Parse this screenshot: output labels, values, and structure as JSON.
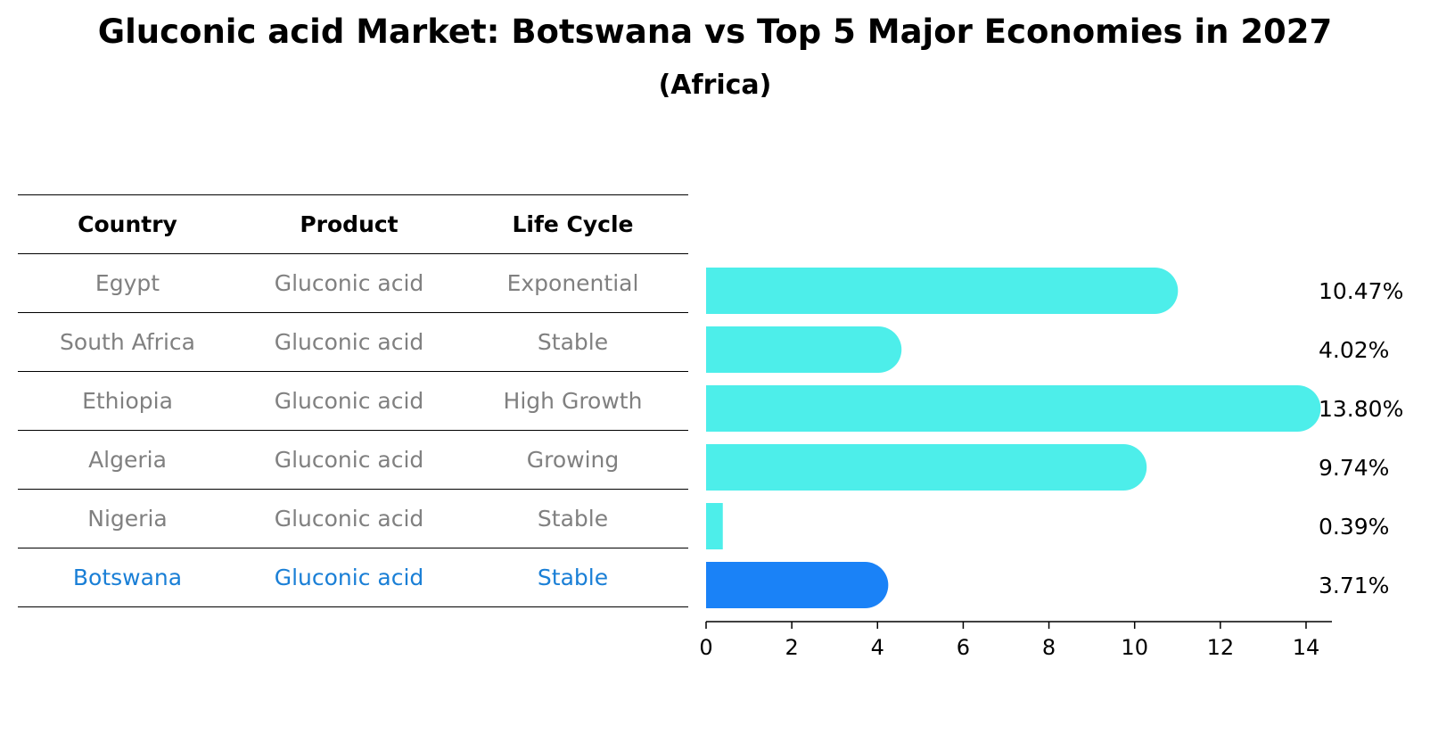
{
  "title": "Gluconic acid Market: Botswana vs Top 5 Major Economies in 2027",
  "subtitle": "(Africa)",
  "table": {
    "headers": [
      "Country",
      "Product",
      "Life Cycle"
    ],
    "rows": [
      {
        "country": "Egypt",
        "product": "Gluconic acid",
        "life_cycle": "Exponential"
      },
      {
        "country": "South Africa",
        "product": "Gluconic acid",
        "life_cycle": "Stable"
      },
      {
        "country": "Ethiopia",
        "product": "Gluconic acid",
        "life_cycle": "High Growth"
      },
      {
        "country": "Algeria",
        "product": "Gluconic acid",
        "life_cycle": "Growing"
      },
      {
        "country": "Nigeria",
        "product": "Gluconic acid",
        "life_cycle": "Stable"
      },
      {
        "country": "Botswana",
        "product": "Gluconic acid",
        "life_cycle": "Stable"
      }
    ]
  },
  "chart_data": {
    "type": "bar",
    "orientation": "horizontal",
    "categories": [
      "Egypt",
      "South Africa",
      "Ethiopia",
      "Algeria",
      "Nigeria",
      "Botswana"
    ],
    "values": [
      10.47,
      4.02,
      13.8,
      9.74,
      0.39,
      3.71
    ],
    "value_labels": [
      "10.47%",
      "4.02%",
      "13.80%",
      "9.74%",
      "0.39%",
      "3.71%"
    ],
    "highlight_category": "Botswana",
    "xlim": [
      0,
      14.5
    ],
    "xticks": [
      0,
      2,
      4,
      6,
      8,
      10,
      12,
      14
    ],
    "xtick_labels": [
      "0",
      "2",
      "4",
      "6",
      "8",
      "10",
      "12",
      "14"
    ],
    "grid": false,
    "colors": {
      "bar": "#4deeea",
      "highlight_bar": "#1a82f7",
      "highlight_text": "#1a7fd6",
      "muted_text": "#808080"
    }
  }
}
